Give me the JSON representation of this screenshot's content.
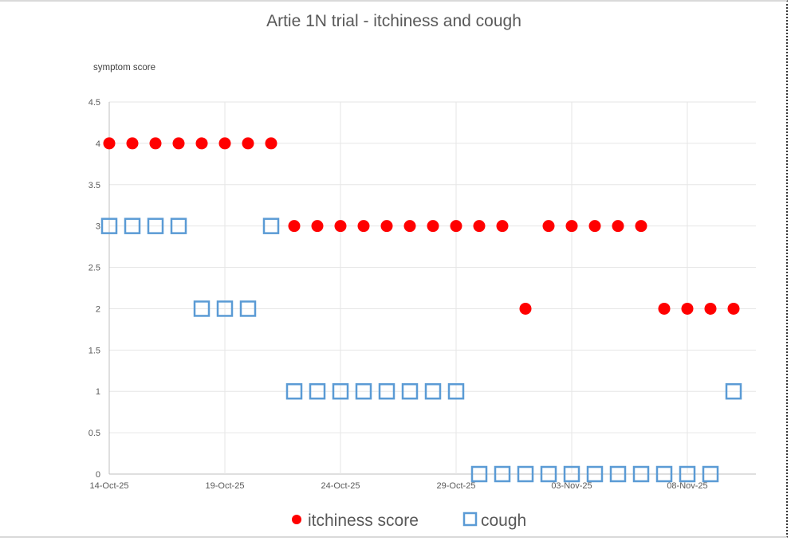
{
  "chart_data": {
    "type": "scatter",
    "title": "Artie 1N trial - itchiness and cough",
    "xlabel": "",
    "ylabel": "symptom score",
    "ylim": [
      0,
      4.5
    ],
    "yticks": [
      "0",
      "0.5",
      "1",
      "1.5",
      "2",
      "2.5",
      "3",
      "3.5",
      "4",
      "4.5"
    ],
    "xticks": [
      "14-Oct-25",
      "19-Oct-25",
      "24-Oct-25",
      "29-Oct-25",
      "03-Nov-25",
      "08-Nov-25"
    ],
    "grid": true,
    "legend_position": "bottom",
    "x": [
      "14-Oct-25",
      "15-Oct-25",
      "16-Oct-25",
      "17-Oct-25",
      "18-Oct-25",
      "19-Oct-25",
      "20-Oct-25",
      "21-Oct-25",
      "22-Oct-25",
      "23-Oct-25",
      "24-Oct-25",
      "25-Oct-25",
      "26-Oct-25",
      "27-Oct-25",
      "28-Oct-25",
      "29-Oct-25",
      "30-Oct-25",
      "31-Oct-25",
      "01-Nov-25",
      "02-Nov-25",
      "03-Nov-25",
      "04-Nov-25",
      "05-Nov-25",
      "06-Nov-25",
      "07-Nov-25",
      "08-Nov-25",
      "09-Nov-25",
      "10-Nov-25"
    ],
    "series": [
      {
        "name": "itchiness score",
        "marker": "filled-circle",
        "color": "#ff0000",
        "values": [
          4,
          4,
          4,
          4,
          4,
          4,
          4,
          4,
          3,
          3,
          3,
          3,
          3,
          3,
          3,
          3,
          3,
          3,
          2,
          3,
          3,
          3,
          3,
          3,
          2,
          2,
          2,
          2
        ]
      },
      {
        "name": "cough",
        "marker": "hollow-square",
        "color": "#5b9bd5",
        "values": [
          3,
          3,
          3,
          3,
          2,
          2,
          2,
          3,
          1,
          1,
          1,
          1,
          1,
          1,
          1,
          1,
          0,
          0,
          0,
          0,
          0,
          0,
          0,
          0,
          0,
          0,
          0,
          1
        ]
      }
    ]
  },
  "legend": {
    "items": [
      {
        "label": "itchiness score"
      },
      {
        "label": "cough"
      }
    ]
  }
}
